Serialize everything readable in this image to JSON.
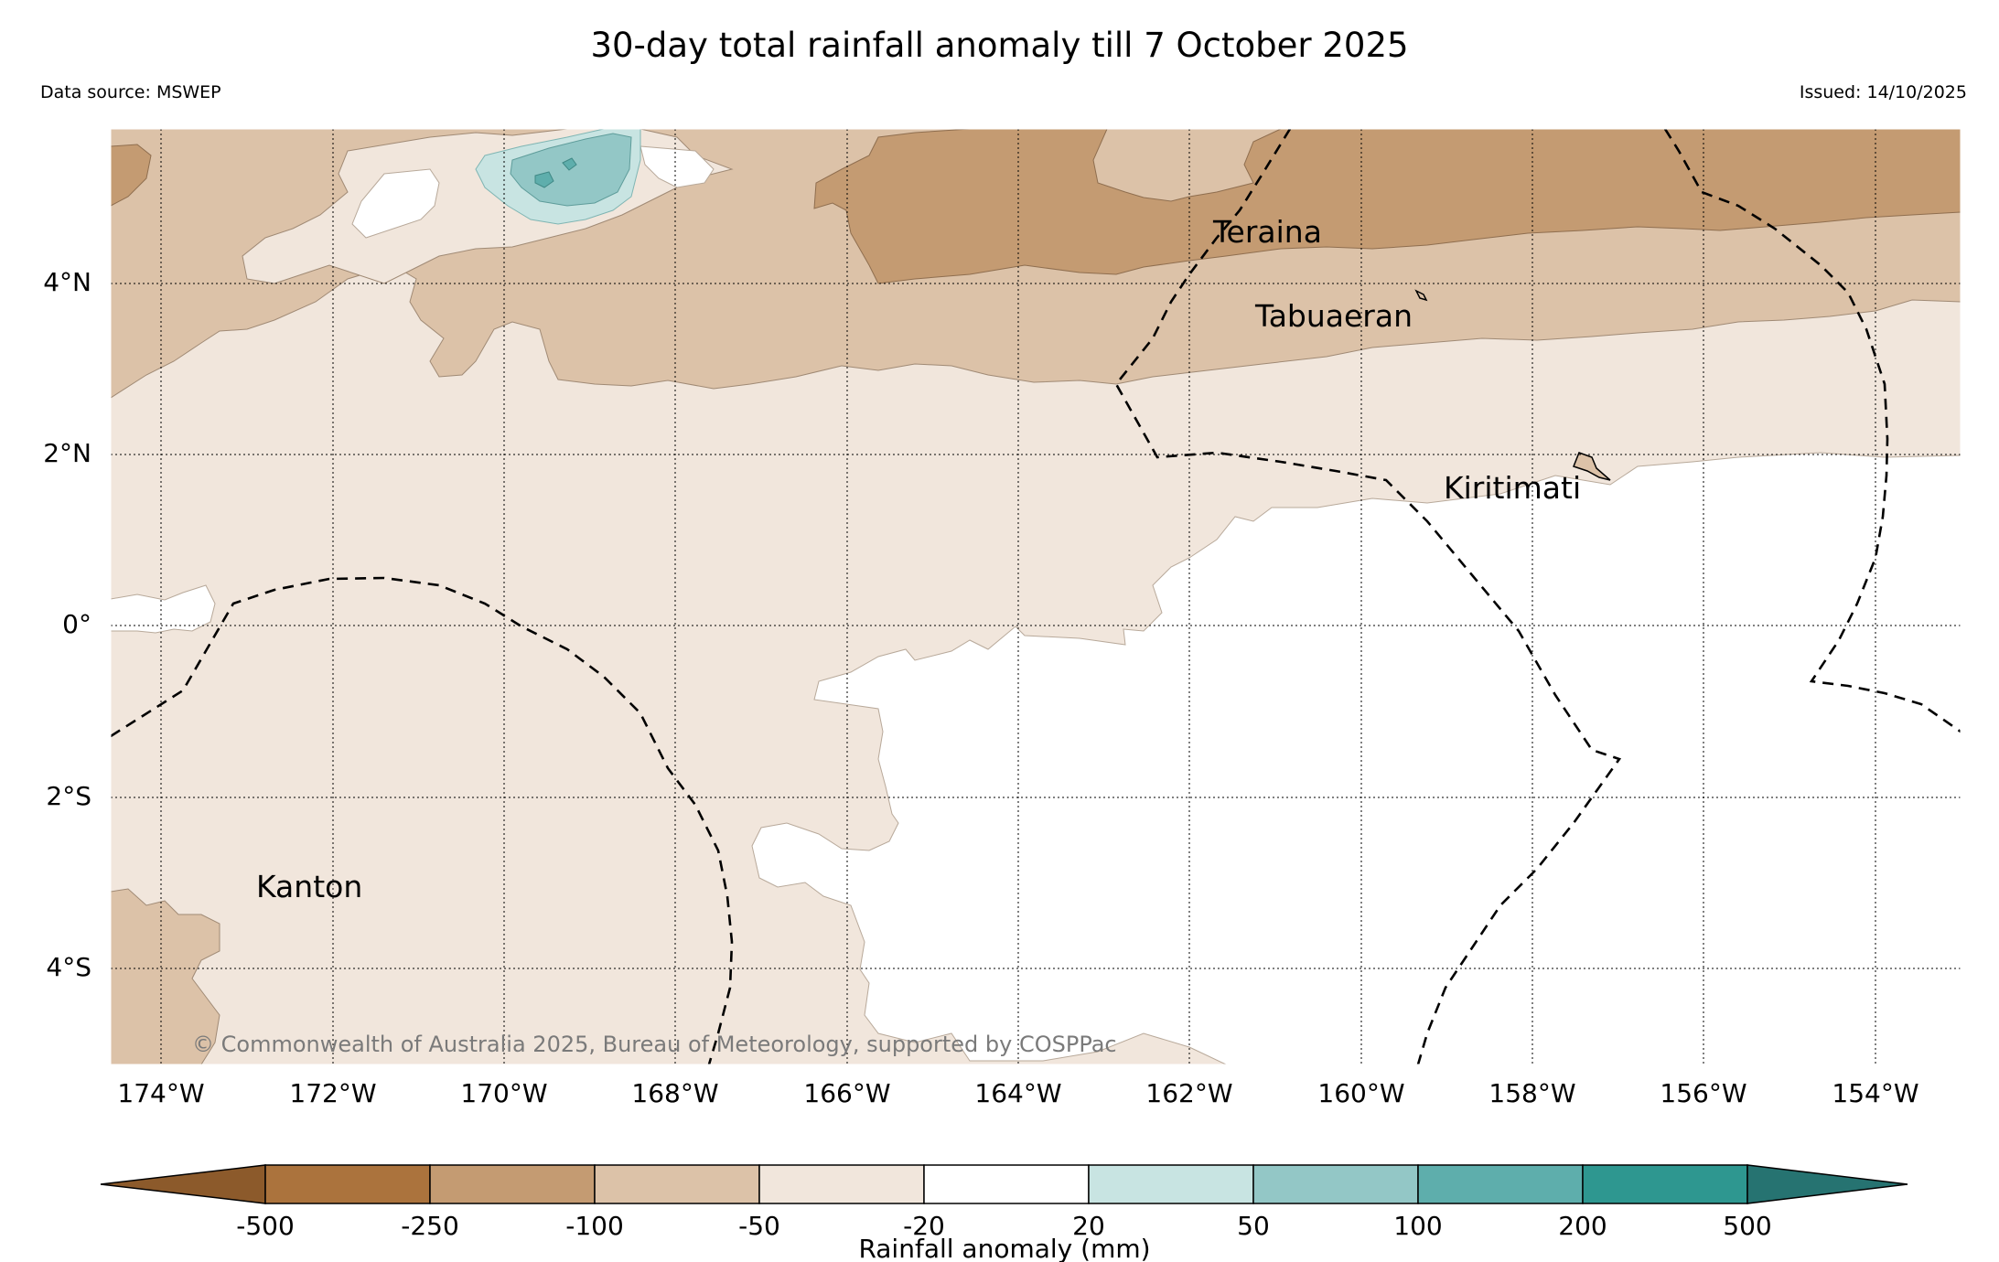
{
  "title": "30-day total rainfall anomaly till 7 October 2025",
  "data_source": "Data source: MSWEP",
  "issued": "Issued: 14/10/2025",
  "copyright": "© Commonwealth of Australia 2025, Bureau of Meteorology, supported by COSPPac",
  "map": {
    "lat_labels": [
      "4°N",
      "2°N",
      "0°",
      "2°S",
      "4°S"
    ],
    "lon_labels": [
      "174°W",
      "172°W",
      "170°W",
      "168°W",
      "166°W",
      "164°W",
      "162°W",
      "160°W",
      "158°W",
      "156°W",
      "154°W"
    ],
    "places": [
      "Teraina",
      "Tabuaeran",
      "Kiritimati",
      "Kanton"
    ]
  },
  "colorbar": {
    "title": "Rainfall anomaly (mm)",
    "tick_labels": [
      "-500",
      "-250",
      "-100",
      "-50",
      "-20",
      "20",
      "50",
      "100",
      "200",
      "500"
    ],
    "colors": [
      "#8c5a2b",
      "#ab733d",
      "#c49b72",
      "#dcc2a8",
      "#f1e6dc",
      "#ffffff",
      "#c8e4e2",
      "#93c7c6",
      "#5eaeac",
      "#2e9790",
      "#267371"
    ]
  }
}
